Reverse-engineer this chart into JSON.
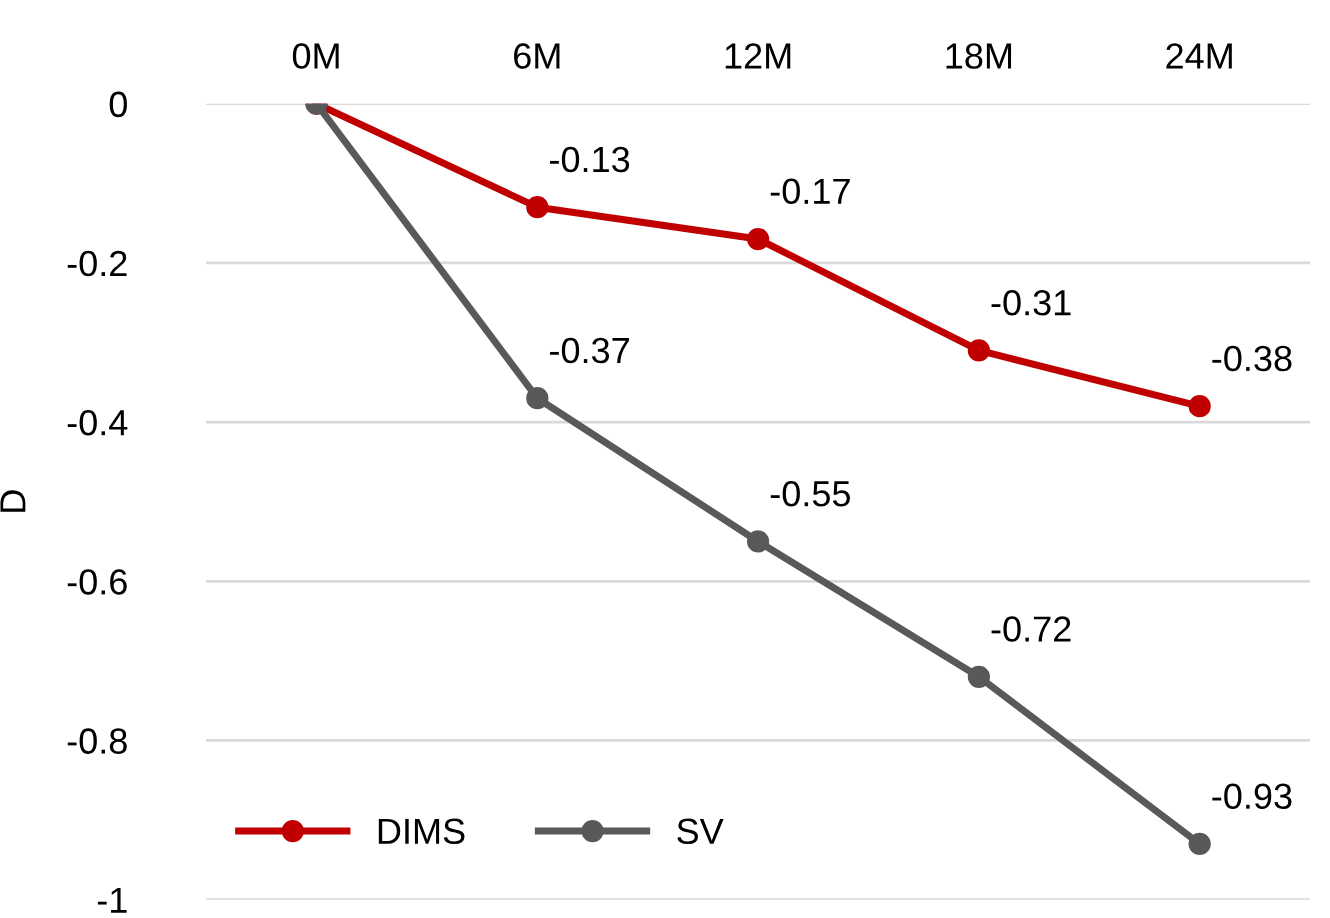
{
  "chart_data": {
    "type": "line",
    "ylabel": "D",
    "categories": [
      "0M",
      "6M",
      "12M",
      "18M",
      "24M"
    ],
    "series": [
      {
        "name": "DIMS",
        "color": "#c00000",
        "values": [
          0,
          -0.13,
          -0.17,
          -0.31,
          -0.38
        ],
        "value_labels": [
          null,
          "-0.13",
          "-0.17",
          "-0.31",
          "-0.38"
        ]
      },
      {
        "name": "SV",
        "color": "#595959",
        "values": [
          0,
          -0.37,
          -0.55,
          -0.72,
          -0.93
        ],
        "value_labels": [
          null,
          "-0.37",
          "-0.55",
          "-0.72",
          "-0.93"
        ]
      }
    ],
    "ylim": [
      -1,
      0
    ],
    "yticks": [
      -1,
      -0.8,
      -0.6,
      -0.4,
      -0.2,
      0
    ],
    "grid": "y",
    "legend": "bottom left",
    "marker": "circle",
    "line_style": "solid"
  }
}
